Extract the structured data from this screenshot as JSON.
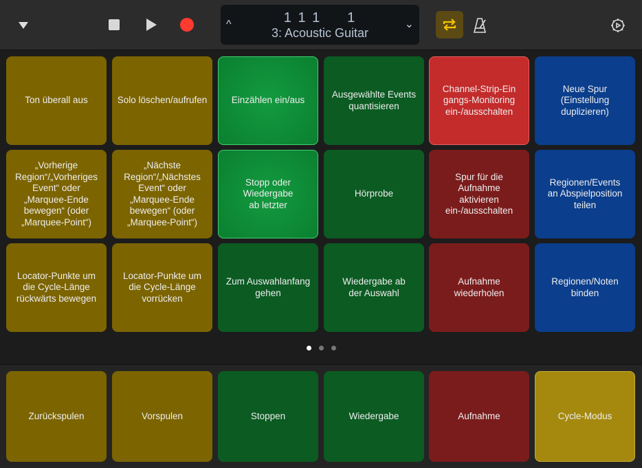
{
  "toolbar": {
    "position": "1 1 1     1",
    "track": "3: Acoustic Guitar",
    "cycle_active": true,
    "colors": {
      "record": "#ff3b30",
      "cycle_bg": "#5c4a14",
      "cycle_icon": "#f5c400"
    }
  },
  "pads": [
    {
      "label": "Ton überall aus",
      "color": "olive"
    },
    {
      "label": "Solo löschen/aufrufen",
      "color": "olive"
    },
    {
      "label": "Einzählen ein/aus",
      "color": "green-on"
    },
    {
      "label": "Ausgewählte Events\nquantisieren",
      "color": "green"
    },
    {
      "label": "Channel-Strip-Ein\ngangs-Monitoring\nein-/ausschalten",
      "color": "red-on"
    },
    {
      "label": "Neue Spur\n(Einstellung\nduplizieren)",
      "color": "blue"
    },
    {
      "label": "„Vorherige\nRegion“/„Vorheriges\nEvent“ oder\n„Marquee-Ende\nbewegen“ (oder\n„Marquee-Point“)",
      "color": "olive"
    },
    {
      "label": "„Nächste\nRegion“/„Nächstes\nEvent“ oder\n„Marquee-Ende\nbewegen“ (oder\n„Marquee-Point“)",
      "color": "olive"
    },
    {
      "label": "Stopp oder\nWiedergabe\nab letzter",
      "color": "green-on"
    },
    {
      "label": "Hörprobe",
      "color": "green"
    },
    {
      "label": "Spur für die\nAufnahme\naktivieren\nein-/ausschalten",
      "color": "red"
    },
    {
      "label": "Regionen/Events\nan Abspielposition\nteilen",
      "color": "blue"
    },
    {
      "label": "Locator-Punkte um\ndie Cycle-Länge\nrückwärts bewegen",
      "color": "olive"
    },
    {
      "label": "Locator-Punkte um\ndie Cycle-Länge\nvorrücken",
      "color": "olive"
    },
    {
      "label": "Zum Auswahlanfang\ngehen",
      "color": "green"
    },
    {
      "label": "Wiedergabe ab\nder Auswahl",
      "color": "green"
    },
    {
      "label": "Aufnahme\nwiederholen",
      "color": "red"
    },
    {
      "label": "Regionen/Noten\nbinden",
      "color": "blue"
    }
  ],
  "page_indicator": {
    "pages": 3,
    "current": 1
  },
  "bottom_pads": [
    {
      "label": "Zurückspulen",
      "color": "olive"
    },
    {
      "label": "Vorspulen",
      "color": "olive"
    },
    {
      "label": "Stoppen",
      "color": "green"
    },
    {
      "label": "Wiedergabe",
      "color": "green"
    },
    {
      "label": "Aufnahme",
      "color": "red"
    },
    {
      "label": "Cycle-Modus",
      "color": "gold"
    }
  ]
}
